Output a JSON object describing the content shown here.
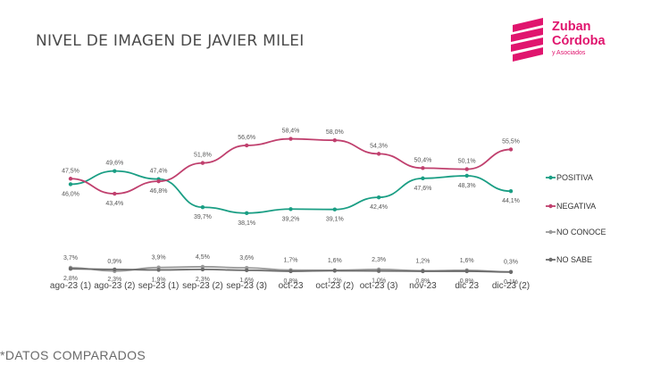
{
  "title": "NIVEL DE IMAGEN DE JAVIER MILEI",
  "footnote": "*DATOS COMPARADOS",
  "logo": {
    "line1": "Zuban",
    "line2": "Córdoba",
    "line3": "y Asociados",
    "icon": "stacked-stripes-icon",
    "color": "#e0156e"
  },
  "chart_data": {
    "type": "line",
    "title": "NIVEL DE IMAGEN DE JAVIER MILEI",
    "categories": [
      "ago-23 (1)",
      "ago-23 (2)",
      "sep-23 (1)",
      "sep-23 (2)",
      "sep-23 (3)",
      "oct-23",
      "oct-23 (2)",
      "oct-23 (3)",
      "nov-23",
      "dic 23",
      "dic-23 (2)"
    ],
    "series": [
      {
        "name": "POSITIVA",
        "color": "#1a9e84",
        "values": [
          46.0,
          49.6,
          47.4,
          39.7,
          38.1,
          39.2,
          39.1,
          42.4,
          47.6,
          48.3,
          44.1
        ],
        "labels": [
          "46,0%",
          "49,6%",
          "47,4%",
          "39,7%",
          "38,1%",
          "39,2%",
          "39,1%",
          "42,4%",
          "47,6%",
          "48,3%",
          "44,1%"
        ]
      },
      {
        "name": "NEGATIVA",
        "color": "#c0406e",
        "values": [
          47.5,
          43.4,
          46.8,
          51.8,
          56.6,
          58.4,
          58.0,
          54.3,
          50.4,
          50.1,
          55.5
        ],
        "labels": [
          "47,5%",
          "43,4%",
          "46,8%",
          "51,8%",
          "56,6%",
          "58,4%",
          "58,0%",
          "54,3%",
          "50,4%",
          "50,1%",
          "55,5%"
        ]
      },
      {
        "name": "NO CONOCE",
        "color": "#9a9a9a",
        "values": [
          3.7,
          0.9,
          3.9,
          4.5,
          3.6,
          1.7,
          1.6,
          2.3,
          1.2,
          1.6,
          0.3
        ],
        "labels": [
          "3,7%",
          "0,9%",
          "3,9%",
          "4,5%",
          "3,6%",
          "1,7%",
          "1,6%",
          "2,3%",
          "1,2%",
          "1,6%",
          "0,3%"
        ]
      },
      {
        "name": "NO SABE",
        "color": "#6b6b6b",
        "values": [
          2.8,
          2.3,
          1.9,
          2.3,
          1.6,
          0.8,
          1.2,
          1.0,
          0.8,
          0.8,
          0.1
        ],
        "labels": [
          "2,8%",
          "2,3%",
          "1,9%",
          "2,3%",
          "1,6%",
          "0,8%",
          "1,2%",
          "1,0%",
          "0,8%",
          "0,8%",
          "0,1%"
        ]
      }
    ],
    "legend_position": "right",
    "grid": false
  }
}
